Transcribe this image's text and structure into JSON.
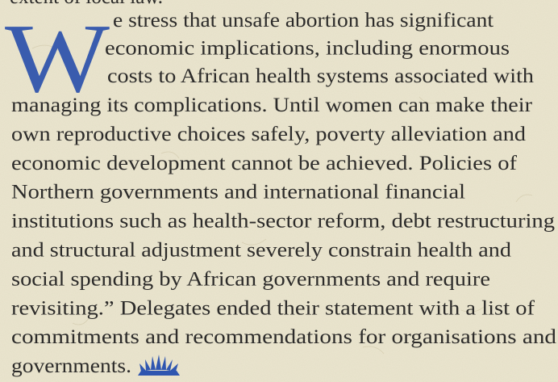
{
  "top_fragment": "extent of local law.",
  "drop_cap": "W",
  "lines": [
    "e stress that unsafe abortion has significant",
    "economic implications, including enormous",
    "costs to African health systems associated with",
    "managing its complications. Until women can make their",
    "own reproductive choices safely, poverty alleviation and",
    "economic development cannot be achieved. Policies of",
    "Northern governments and international financial",
    "institutions such as health-sector reform, debt restructuring",
    "and structural adjustment severely constrain health and",
    "social spending by African governments and require",
    "revisiting.” Delegates ended their statement with a list of",
    "commitments and recommendations for organisations and",
    "governments."
  ]
}
